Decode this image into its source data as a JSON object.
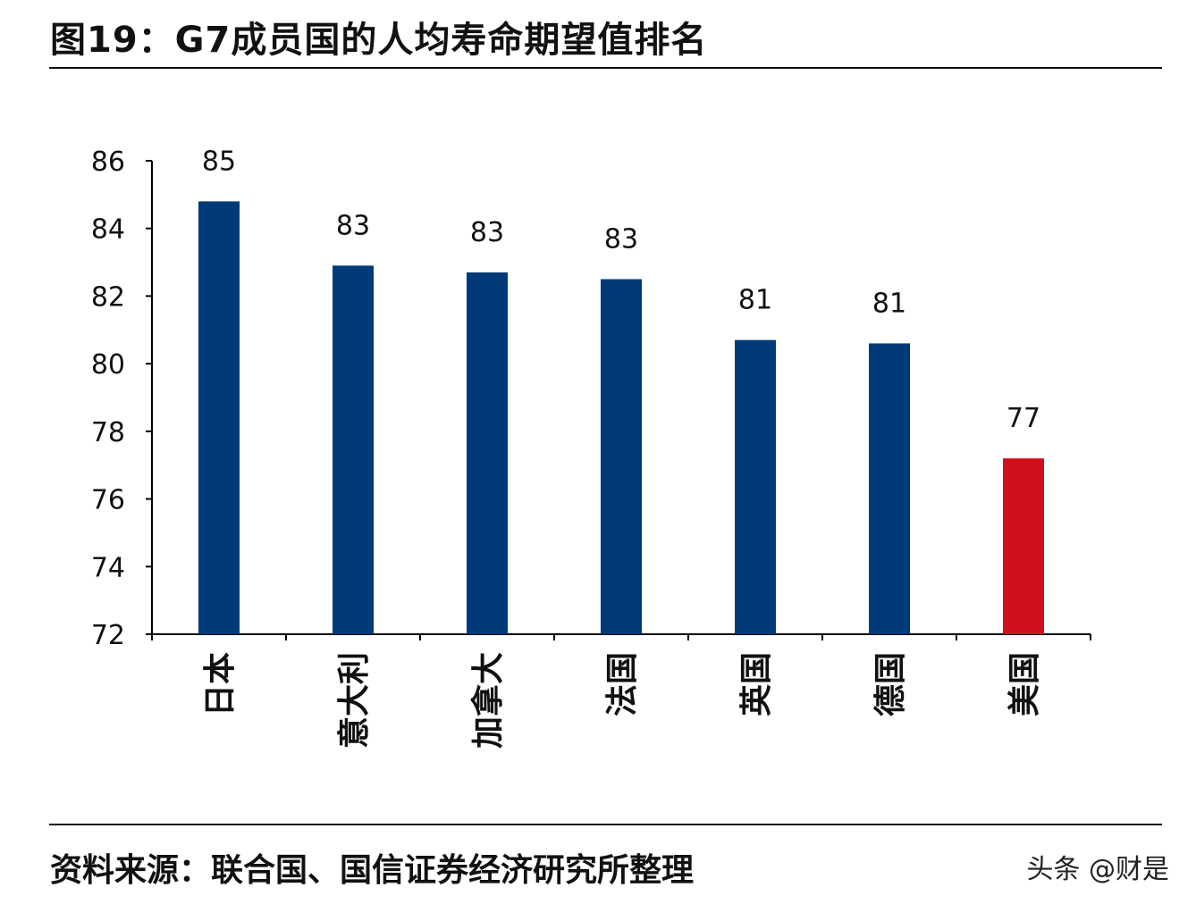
{
  "title": "图19：G7成员国的人均寿命期望值排名",
  "source": "资料来源：联合国、国信证券经济研究所整理",
  "watermark": "头条 @财是",
  "chart_data": {
    "type": "bar",
    "title": "图19：G7成员国的人均寿命期望值排名",
    "categories": [
      "日本",
      "意大利",
      "加拿大",
      "法国",
      "英国",
      "德国",
      "美国"
    ],
    "values": [
      84.8,
      82.9,
      82.7,
      82.5,
      80.7,
      80.6,
      77.2
    ],
    "data_labels": [
      "85",
      "83",
      "83",
      "83",
      "81",
      "81",
      "77"
    ],
    "colors": [
      "#003A78",
      "#003A78",
      "#003A78",
      "#003A78",
      "#003A78",
      "#003A78",
      "#D0101A"
    ],
    "ylim": [
      72,
      86
    ],
    "yticks": [
      "72",
      "74",
      "76",
      "78",
      "80",
      "82",
      "84",
      "86"
    ],
    "xlabel": "",
    "ylabel": "",
    "grid": false,
    "legend": "none"
  }
}
